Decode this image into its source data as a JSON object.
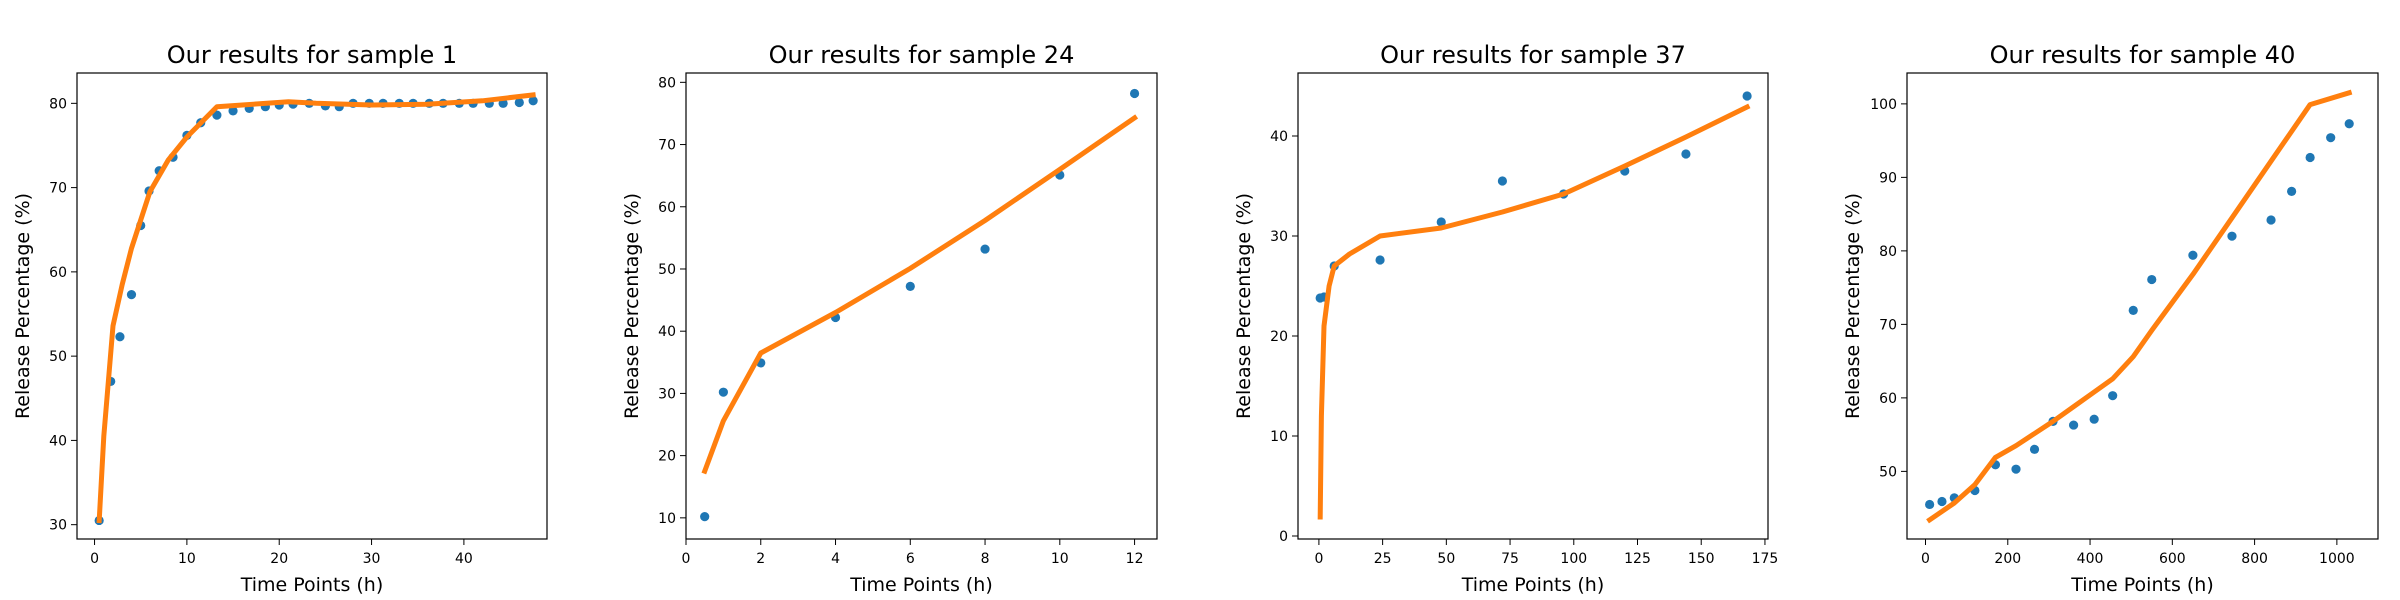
{
  "chart_data": [
    {
      "type": "scatter",
      "title": "Our results for sample 1",
      "xlabel": "Time Points (h)",
      "ylabel": "Release Percentage (%)",
      "xlim": [
        -1.9,
        49.0
      ],
      "ylim": [
        28.3,
        83.6
      ],
      "xticks": [
        0,
        10,
        20,
        30,
        40
      ],
      "yticks": [
        30,
        40,
        50,
        60,
        70,
        80
      ],
      "grid": false,
      "legend": "none",
      "series": [
        {
          "kind": "points",
          "color": "#1f77b4",
          "x": [
            0.5,
            1.75,
            2.75,
            4.0,
            5.0,
            5.9,
            7.0,
            8.5,
            10.0,
            11.5,
            13.25,
            15.0,
            16.75,
            18.5,
            20.0,
            21.5,
            23.25,
            25.0,
            26.5,
            28.0,
            29.75,
            31.25,
            33.0,
            34.5,
            36.25,
            37.75,
            39.5,
            41.0,
            42.75,
            44.25,
            46.0,
            47.5
          ],
          "y": [
            30.5,
            47.0,
            52.3,
            57.3,
            65.5,
            69.6,
            72.0,
            73.6,
            76.2,
            77.7,
            78.6,
            79.1,
            79.4,
            79.6,
            79.8,
            79.9,
            80.0,
            79.7,
            79.6,
            80.0,
            80.0,
            80.0,
            80.0,
            80.0,
            80.0,
            80.0,
            80.0,
            80.0,
            80.0,
            80.0,
            80.1,
            80.3
          ]
        },
        {
          "kind": "line",
          "color": "#ff7f0e",
          "x": [
            0.5,
            1.0,
            2.0,
            3.0,
            4.0,
            6.0,
            8.0,
            10.0,
            13.25,
            16.0,
            21.0,
            24.0,
            30.0,
            36.0,
            42.0,
            47.5
          ],
          "y": [
            30.5,
            40.5,
            53.6,
            58.5,
            62.8,
            69.5,
            73.3,
            76.0,
            79.6,
            79.8,
            80.2,
            80.0,
            79.8,
            79.9,
            80.3,
            81.0
          ]
        }
      ]
    },
    {
      "type": "scatter",
      "title": "Our results for sample 24",
      "xlabel": "Time Points (h)",
      "ylabel": "Release Percentage (%)",
      "xlim": [
        0.0,
        12.6
      ],
      "ylim": [
        6.6,
        81.5
      ],
      "xticks": [
        0,
        2,
        4,
        6,
        8,
        10,
        12
      ],
      "yticks": [
        10,
        20,
        30,
        40,
        50,
        60,
        70,
        80
      ],
      "grid": false,
      "legend": "none",
      "series": [
        {
          "kind": "points",
          "color": "#1f77b4",
          "x": [
            0.5,
            1.0,
            2.0,
            4.0,
            6.0,
            8.0,
            10.0,
            12.0
          ],
          "y": [
            10.2,
            30.2,
            34.9,
            42.2,
            47.2,
            53.2,
            65.1,
            78.2
          ]
        },
        {
          "kind": "line",
          "color": "#ff7f0e",
          "x": [
            0.5,
            1.0,
            2.0,
            4.0,
            6.0,
            8.0,
            10.0,
            12.0
          ],
          "y": [
            17.5,
            25.6,
            36.5,
            43.0,
            50.1,
            57.8,
            66.0,
            74.3
          ]
        }
      ]
    },
    {
      "type": "scatter",
      "title": "Our results for sample 37",
      "xlabel": "Time Points (h)",
      "ylabel": "Release Percentage (%)",
      "xlim": [
        -8.2,
        176.2
      ],
      "ylim": [
        -0.3,
        46.3
      ],
      "xticks": [
        0,
        25,
        50,
        75,
        100,
        125,
        150,
        175
      ],
      "yticks": [
        0,
        10,
        20,
        30,
        40
      ],
      "grid": false,
      "legend": "none",
      "series": [
        {
          "kind": "points",
          "color": "#1f77b4",
          "x": [
            0.5,
            2.0,
            6.0,
            24.0,
            48.0,
            72.0,
            96.0,
            120.0,
            144.0,
            168.0
          ],
          "y": [
            23.8,
            23.9,
            27.0,
            27.6,
            31.4,
            35.5,
            34.2,
            36.5,
            38.2,
            44.0
          ]
        },
        {
          "kind": "line",
          "color": "#ff7f0e",
          "x": [
            0.5,
            1.0,
            2.0,
            4.0,
            6.0,
            12.0,
            24.0,
            48.0,
            72.0,
            96.0,
            120.0,
            144.0,
            168.0
          ],
          "y": [
            1.9,
            12.0,
            21.0,
            25.0,
            27.0,
            28.2,
            30.0,
            30.8,
            32.4,
            34.2,
            37.0,
            39.9,
            42.9
          ]
        }
      ]
    },
    {
      "type": "scatter",
      "title": "Our results for sample 40",
      "xlabel": "Time Points (h)",
      "ylabel": "Release Percentage (%)",
      "xlim": [
        -45.0,
        1100.0
      ],
      "ylim": [
        40.8,
        104.2
      ],
      "xticks": [
        0,
        200,
        400,
        600,
        800,
        1000
      ],
      "yticks": [
        50,
        60,
        70,
        80,
        90,
        100
      ],
      "grid": false,
      "legend": "none",
      "series": [
        {
          "kind": "points",
          "color": "#1f77b4",
          "x": [
            10,
            40,
            70,
            120,
            170,
            220,
            265,
            310,
            360,
            410,
            455,
            505,
            550,
            650,
            745,
            840,
            890,
            935,
            985,
            1030
          ],
          "y": [
            45.5,
            45.9,
            46.4,
            47.4,
            50.9,
            50.3,
            53.0,
            56.8,
            56.3,
            57.1,
            60.3,
            71.9,
            76.1,
            79.4,
            82.0,
            84.2,
            88.1,
            92.7,
            95.4,
            97.3
          ]
        },
        {
          "kind": "line",
          "color": "#ff7f0e",
          "x": [
            10,
            70,
            120,
            170,
            220,
            310,
            360,
            410,
            455,
            505,
            550,
            650,
            745,
            840,
            935,
            1030
          ],
          "y": [
            43.4,
            45.7,
            48.2,
            51.9,
            53.5,
            56.8,
            58.8,
            60.8,
            62.6,
            65.6,
            69.2,
            76.8,
            84.5,
            92.2,
            99.9,
            101.5
          ]
        }
      ]
    }
  ]
}
